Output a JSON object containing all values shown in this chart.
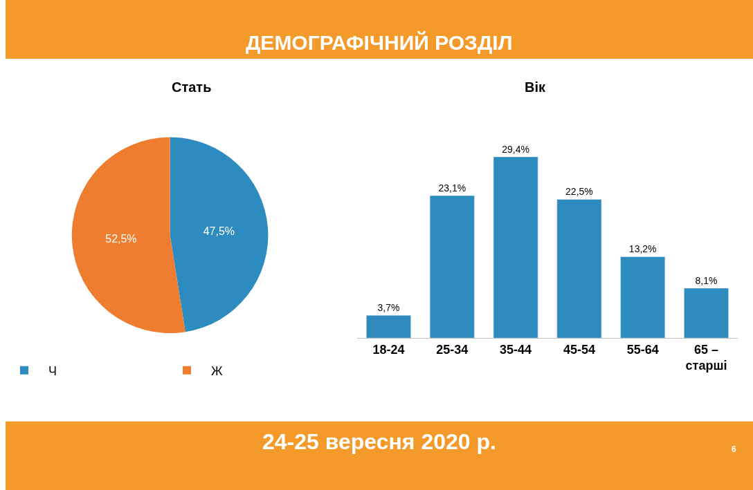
{
  "chart_data": [
    {
      "type": "pie",
      "title": "Стать",
      "categories": [
        "Ч",
        "Ж"
      ],
      "values": [
        47.5,
        52.5
      ],
      "colors": [
        "#2e8bc0",
        "#ee7d2f"
      ],
      "value_labels": [
        "47,5%",
        "52,5%"
      ],
      "legend": "bottom",
      "annotations": [
        "ДЕМОГРАФІЧНИЙ РОЗДІЛ",
        "24-25 вересня 2020 р.",
        "6"
      ]
    },
    {
      "type": "bar",
      "title": "Вік",
      "categories": [
        "18-24",
        "25-34",
        "35-44",
        "45-54",
        "55-64",
        "65 –\nстарші"
      ],
      "values": [
        3.7,
        23.1,
        29.4,
        22.5,
        13.2,
        8.1
      ],
      "color": "#2e8bc0",
      "value_labels": [
        "3,7%",
        "23,1%",
        "29,4%",
        "22,5%",
        "13,2%",
        "8,1%"
      ]
    }
  ]
}
